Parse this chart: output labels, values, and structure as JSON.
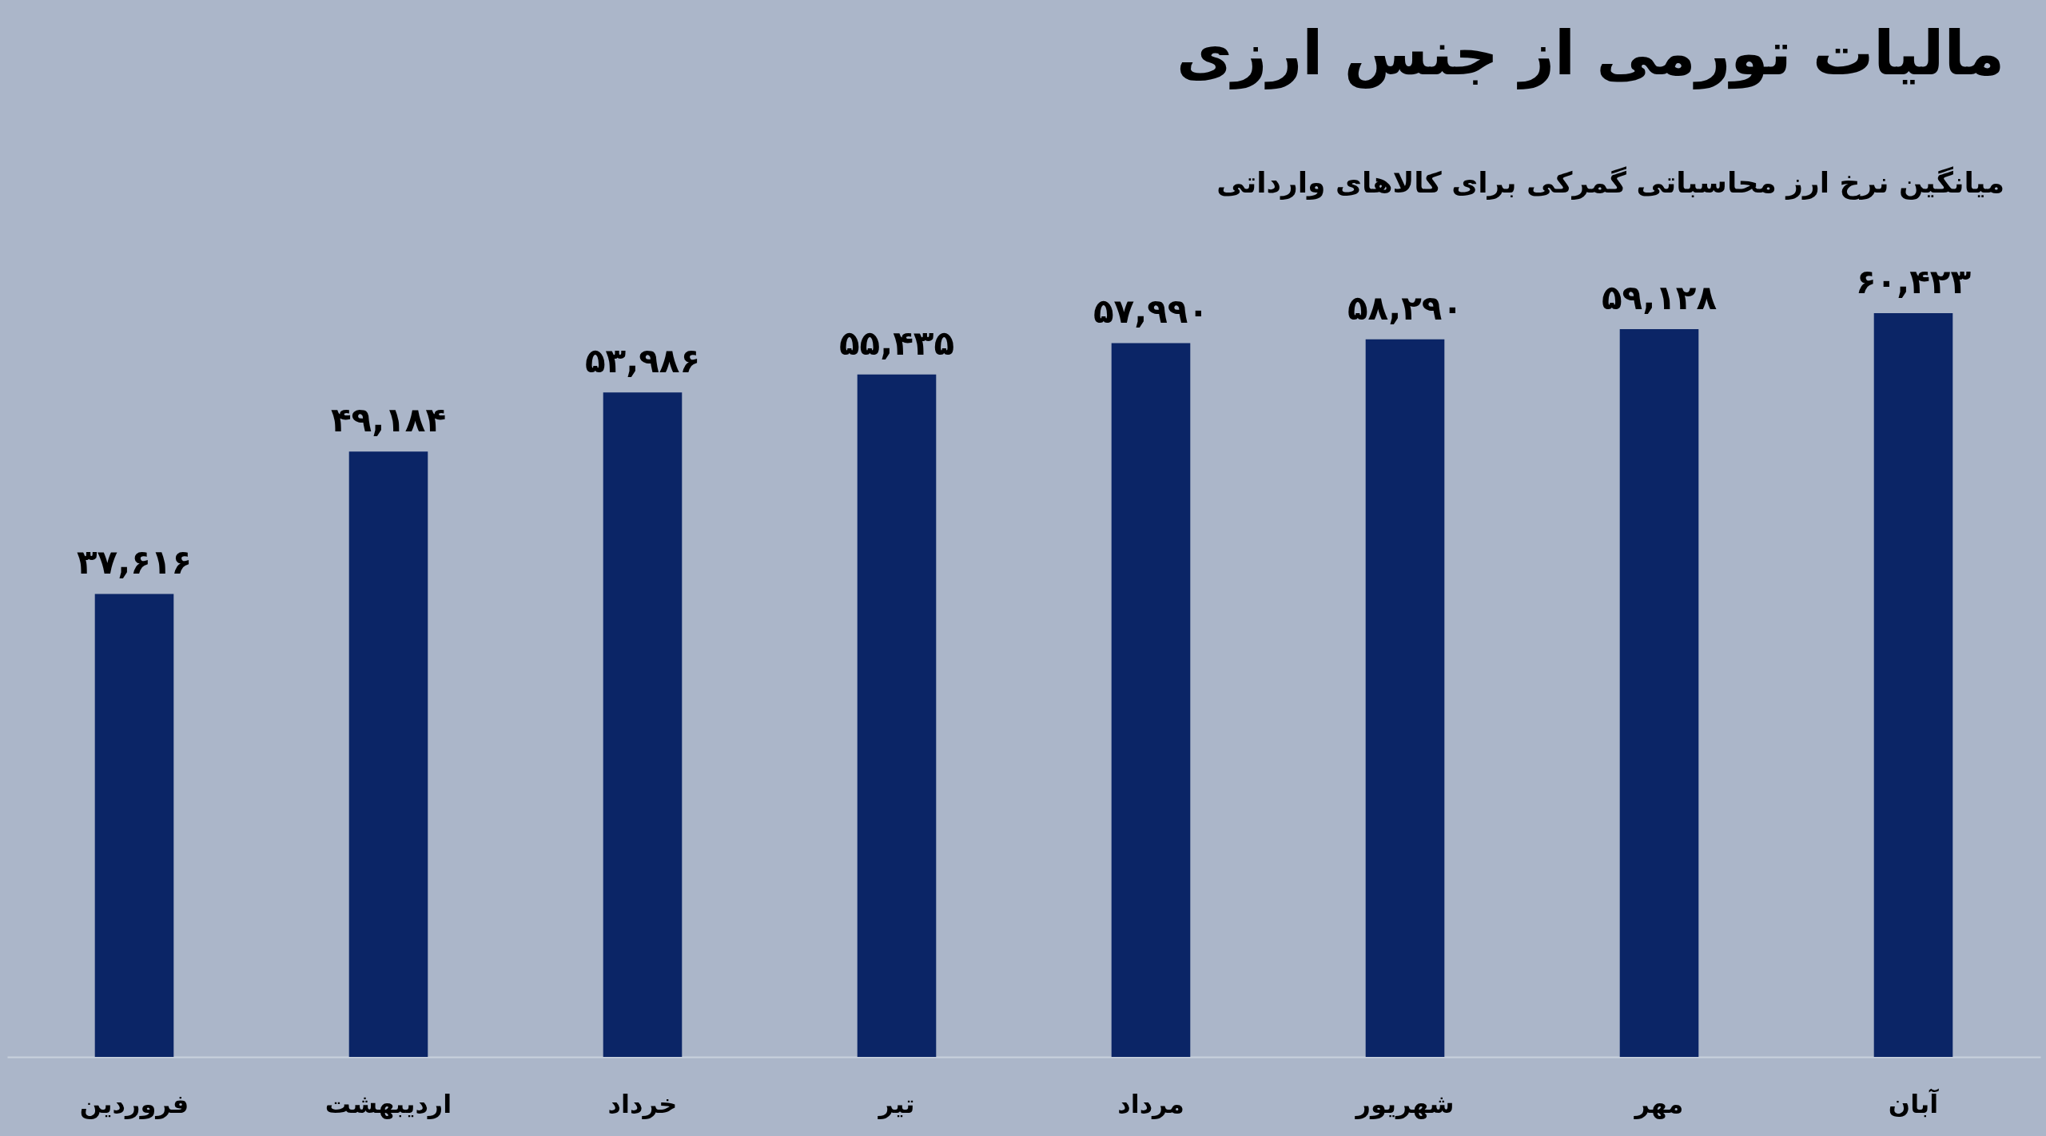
{
  "chart_data": {
    "type": "bar",
    "title": "مالیات تورمی از جنس ارزی",
    "subtitle": "میانگین نرخ ارز محاسباتی گمرکی برای کالاهای وارداتی",
    "categories": [
      "فروردین",
      "اردیبهشت",
      "خرداد",
      "تیر",
      "مرداد",
      "شهریور",
      "مهر",
      "آبان"
    ],
    "values": [
      37616,
      49184,
      53986,
      55435,
      57990,
      58290,
      59128,
      60423
    ],
    "value_labels": [
      "۳۷,۶۱۶",
      "۴۹,۱۸۴",
      "۵۳,۹۸۶",
      "۵۵,۴۳۵",
      "۵۷,۹۹۰",
      "۵۸,۲۹۰",
      "۵۹,۱۲۸",
      "۶۰,۴۲۳"
    ],
    "color": "#0b2566",
    "tick_labels": "x"
  }
}
